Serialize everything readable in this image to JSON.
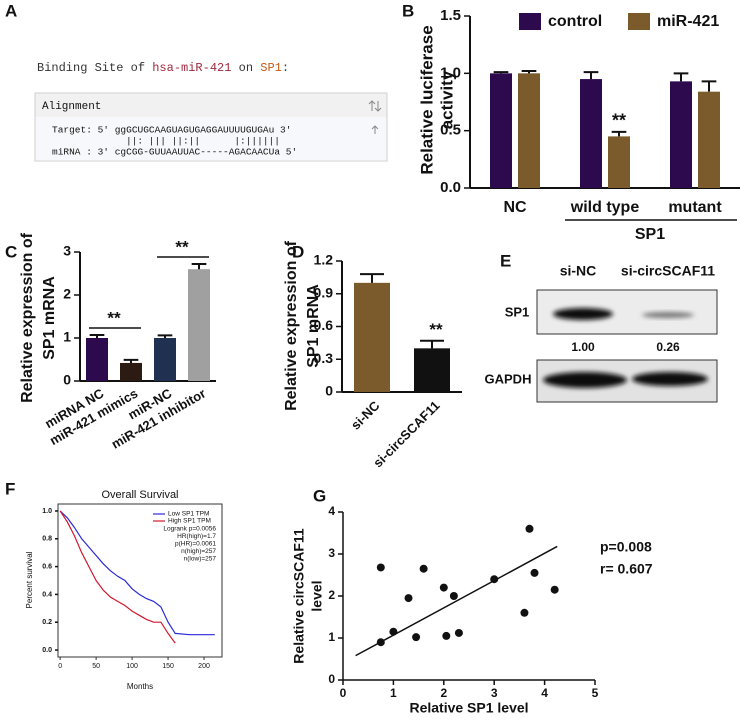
{
  "binding_site": {
    "panel": "A",
    "heading_parts": [
      "Binding Site of ",
      "hsa-miR-421",
      " on ",
      "SP1",
      ":"
    ],
    "table_header": "Alignment",
    "target": "Target: 5' ggGCUGCAAGUAGUGAGGAUUUUGUGAu 3'",
    "pairing": "||: ||| ||:||      |:||||||",
    "mirna": "miRNA : 3' cgCGG-GUUAAUUAC-----AGACAACUa 5'"
  },
  "western_blot": {
    "panel": "E",
    "lanes": [
      "si-NC",
      "si-circSCAF11"
    ],
    "rows": [
      "SP1",
      "GAPDH"
    ],
    "quantification": [
      "1.00",
      "0.26"
    ]
  },
  "chart_data": [
    {
      "type": "bar",
      "panel": "B",
      "ylabel": [
        "Relative luciferase",
        "activity"
      ],
      "categories": [
        "NC",
        "wild type",
        "mutant"
      ],
      "group_label": "SP1",
      "series": [
        {
          "name": "control",
          "color": "#2d0a4e",
          "values": [
            1.0,
            0.95,
            0.93
          ],
          "errors": [
            0.01,
            0.06,
            0.07
          ]
        },
        {
          "name": "miR-421",
          "color": "#7b5a2b",
          "values": [
            1.0,
            0.45,
            0.84
          ],
          "errors": [
            0.02,
            0.04,
            0.09
          ]
        }
      ],
      "annotations": [
        "**"
      ],
      "ylim": [
        0,
        1.5
      ],
      "yticks": [
        {
          "value": 0,
          "label": "0.0"
        },
        0.5,
        {
          "value": 1,
          "label": "1.0"
        },
        1.5
      ]
    },
    {
      "type": "bar",
      "panel": "C",
      "ylabel": [
        "Relative expression of",
        "SP1 mRNA"
      ],
      "categories": [
        "miRNA NC",
        "miR-421 mimics",
        "miR-NC",
        "miR-421 inhibitor"
      ],
      "values": [
        1.0,
        0.42,
        1.0,
        2.6
      ],
      "errors": [
        0.07,
        0.07,
        0.06,
        0.12
      ],
      "colors": [
        "#2d0a4e",
        "#2b1b12",
        "#1f3050",
        "#a0a0a0"
      ],
      "annotations": [
        "**",
        "**"
      ],
      "ylim": [
        0,
        3
      ],
      "yticks": [
        0,
        1,
        2,
        3
      ]
    },
    {
      "type": "bar",
      "panel": "D",
      "ylabel": [
        "Relative expression of",
        "SP1 mRNA"
      ],
      "categories": [
        "si-NC",
        "si-circSCAF11"
      ],
      "values": [
        1.0,
        0.4
      ],
      "errors": [
        0.08,
        0.07
      ],
      "colors": [
        "#7b5a2b",
        "#111111"
      ],
      "annotations": [
        "**"
      ],
      "ylim": [
        0,
        1.2
      ],
      "yticks": [
        0,
        0.3,
        0.6,
        0.9,
        1.2
      ]
    },
    {
      "type": "line",
      "panel": "F",
      "title": "Overall Survival",
      "xlabel": "Months",
      "ylabel": "Percent survival",
      "x": [
        0,
        10,
        20,
        30,
        40,
        50,
        60,
        70,
        80,
        90,
        100,
        110,
        120,
        130,
        140,
        150,
        160,
        180,
        200,
        215
      ],
      "series": [
        {
          "name": "Low SP1 TPM",
          "color": "#2a2ad8",
          "values": [
            1.0,
            0.95,
            0.88,
            0.8,
            0.74,
            0.68,
            0.62,
            0.57,
            0.53,
            0.5,
            0.44,
            0.4,
            0.37,
            0.35,
            0.31,
            0.2,
            0.12,
            0.11,
            0.11,
            0.11
          ]
        },
        {
          "name": "High SP1 TPM",
          "color": "#d01830",
          "values": [
            1.0,
            0.92,
            0.82,
            0.7,
            0.6,
            0.5,
            0.43,
            0.38,
            0.35,
            0.32,
            0.28,
            0.25,
            0.22,
            0.2,
            0.2,
            0.12,
            0.05,
            null,
            null,
            null
          ]
        }
      ],
      "stats": [
        "Logrank p=0.0056",
        "HR(high)=1.7",
        "p(HR)=0.0061",
        "n(high)=257",
        "n(low)=257"
      ],
      "xlim": [
        -3,
        225
      ],
      "ylim": [
        -0.05,
        1.05
      ],
      "xticks": [
        0,
        50,
        100,
        150,
        200
      ],
      "yticks": [
        {
          "value": 0,
          "label": "0.0"
        },
        0.2,
        0.4,
        0.6,
        0.8,
        {
          "value": 1,
          "label": "1.0"
        }
      ]
    },
    {
      "type": "scatter",
      "panel": "G",
      "xlabel": "Relative SP1 level",
      "ylabel": [
        "Relative circSCAF11",
        "level"
      ],
      "x": [
        0.75,
        0.75,
        1.0,
        1.3,
        1.45,
        1.6,
        2.0,
        2.05,
        2.2,
        2.3,
        3.0,
        3.6,
        3.7,
        3.8,
        4.2
      ],
      "y": [
        2.68,
        0.9,
        1.15,
        1.95,
        1.02,
        2.65,
        2.2,
        1.05,
        2.0,
        1.12,
        2.4,
        1.6,
        3.6,
        2.55,
        2.15
      ],
      "fit": {
        "x": [
          0.25,
          4.25
        ],
        "y": [
          0.58,
          3.18
        ]
      },
      "annotations": [
        "p=0.008",
        "r= 0.607"
      ],
      "xlim": [
        0,
        5
      ],
      "ylim": [
        0,
        4
      ],
      "xticks": [
        0,
        1,
        2,
        3,
        4,
        5
      ],
      "yticks": [
        0,
        1,
        2,
        3,
        4
      ]
    }
  ]
}
